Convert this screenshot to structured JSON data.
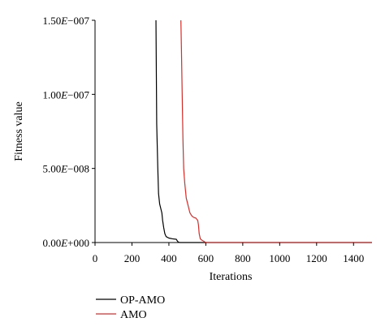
{
  "chart_data": {
    "type": "line",
    "xlabel": "Iterations",
    "ylabel": "Fitness value",
    "xlim": [
      0,
      1500
    ],
    "ylim": [
      0,
      1.5e-07
    ],
    "x_ticks": [
      "0",
      "200",
      "400",
      "600",
      "800",
      "1000",
      "1200",
      "1400"
    ],
    "x_tick_values": [
      0,
      200,
      400,
      600,
      800,
      1000,
      1200,
      1400
    ],
    "y_tick_values": [
      0,
      5e-08,
      1e-07,
      1.5e-07
    ],
    "y_ticks": [
      {
        "mantissa": "0.00",
        "exp": "+000"
      },
      {
        "mantissa": "5.00",
        "exp": "−008"
      },
      {
        "mantissa": "1.00",
        "exp": "−007"
      },
      {
        "mantissa": "1.50",
        "exp": "−007"
      }
    ],
    "y_tick_exp_symbol": "E",
    "legend_position": "bottom-left",
    "grid": false,
    "series": [
      {
        "name": "OP-AMO",
        "color": "#000000",
        "points": [
          [
            330,
            1.5e-07
          ],
          [
            332,
            1.15e-07
          ],
          [
            334,
            8e-08
          ],
          [
            336,
            7e-08
          ],
          [
            340,
            5e-08
          ],
          [
            344,
            3.3e-08
          ],
          [
            350,
            2.6e-08
          ],
          [
            356,
            2.3e-08
          ],
          [
            362,
            2e-08
          ],
          [
            366,
            1.5e-08
          ],
          [
            372,
            1e-08
          ],
          [
            378,
            6e-09
          ],
          [
            385,
            4e-09
          ],
          [
            400,
            3e-09
          ],
          [
            420,
            2.5e-09
          ],
          [
            440,
            2.2e-09
          ],
          [
            446,
            1e-09
          ],
          [
            452,
            2e-10
          ],
          [
            460,
            0
          ],
          [
            1500,
            0
          ]
        ]
      },
      {
        "name": "AMO",
        "color": "#d0312d",
        "points": [
          [
            465,
            1.5e-07
          ],
          [
            468,
            1.3e-07
          ],
          [
            472,
            1e-07
          ],
          [
            476,
            7e-08
          ],
          [
            480,
            5e-08
          ],
          [
            486,
            4e-08
          ],
          [
            494,
            3e-08
          ],
          [
            504,
            2.5e-08
          ],
          [
            514,
            2e-08
          ],
          [
            524,
            1.8e-08
          ],
          [
            534,
            1.7e-08
          ],
          [
            546,
            1.65e-08
          ],
          [
            556,
            1.5e-08
          ],
          [
            560,
            1.2e-08
          ],
          [
            564,
            6e-09
          ],
          [
            570,
            2.5e-09
          ],
          [
            580,
            1.5e-09
          ],
          [
            594,
            5e-10
          ],
          [
            600,
            0
          ],
          [
            1500,
            0
          ]
        ]
      }
    ]
  }
}
